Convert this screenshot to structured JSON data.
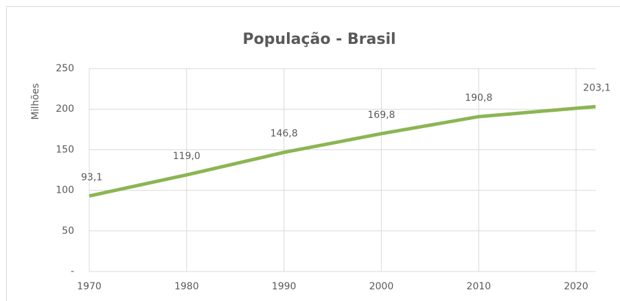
{
  "chart_data": {
    "type": "line",
    "title": "População - Brasil",
    "y_label": "Milhões",
    "x": [
      1970,
      1980,
      1990,
      2000,
      2010,
      2022
    ],
    "series": [
      {
        "name": "População",
        "color": "#8cb552",
        "values": [
          93.1,
          119.0,
          146.8,
          169.8,
          190.8,
          203.1
        ],
        "value_labels": [
          "93,1",
          "119,0",
          "146,8",
          "169,8",
          "190,8",
          "203,1"
        ]
      }
    ],
    "xlim": [
      1970,
      2022
    ],
    "xticks": [
      1970,
      1980,
      1990,
      2000,
      2010,
      2020
    ],
    "ylim": [
      0,
      250
    ],
    "yticks": [
      {
        "value": 0,
        "label": "-"
      },
      50,
      100,
      150,
      200,
      250
    ],
    "grid": true
  }
}
